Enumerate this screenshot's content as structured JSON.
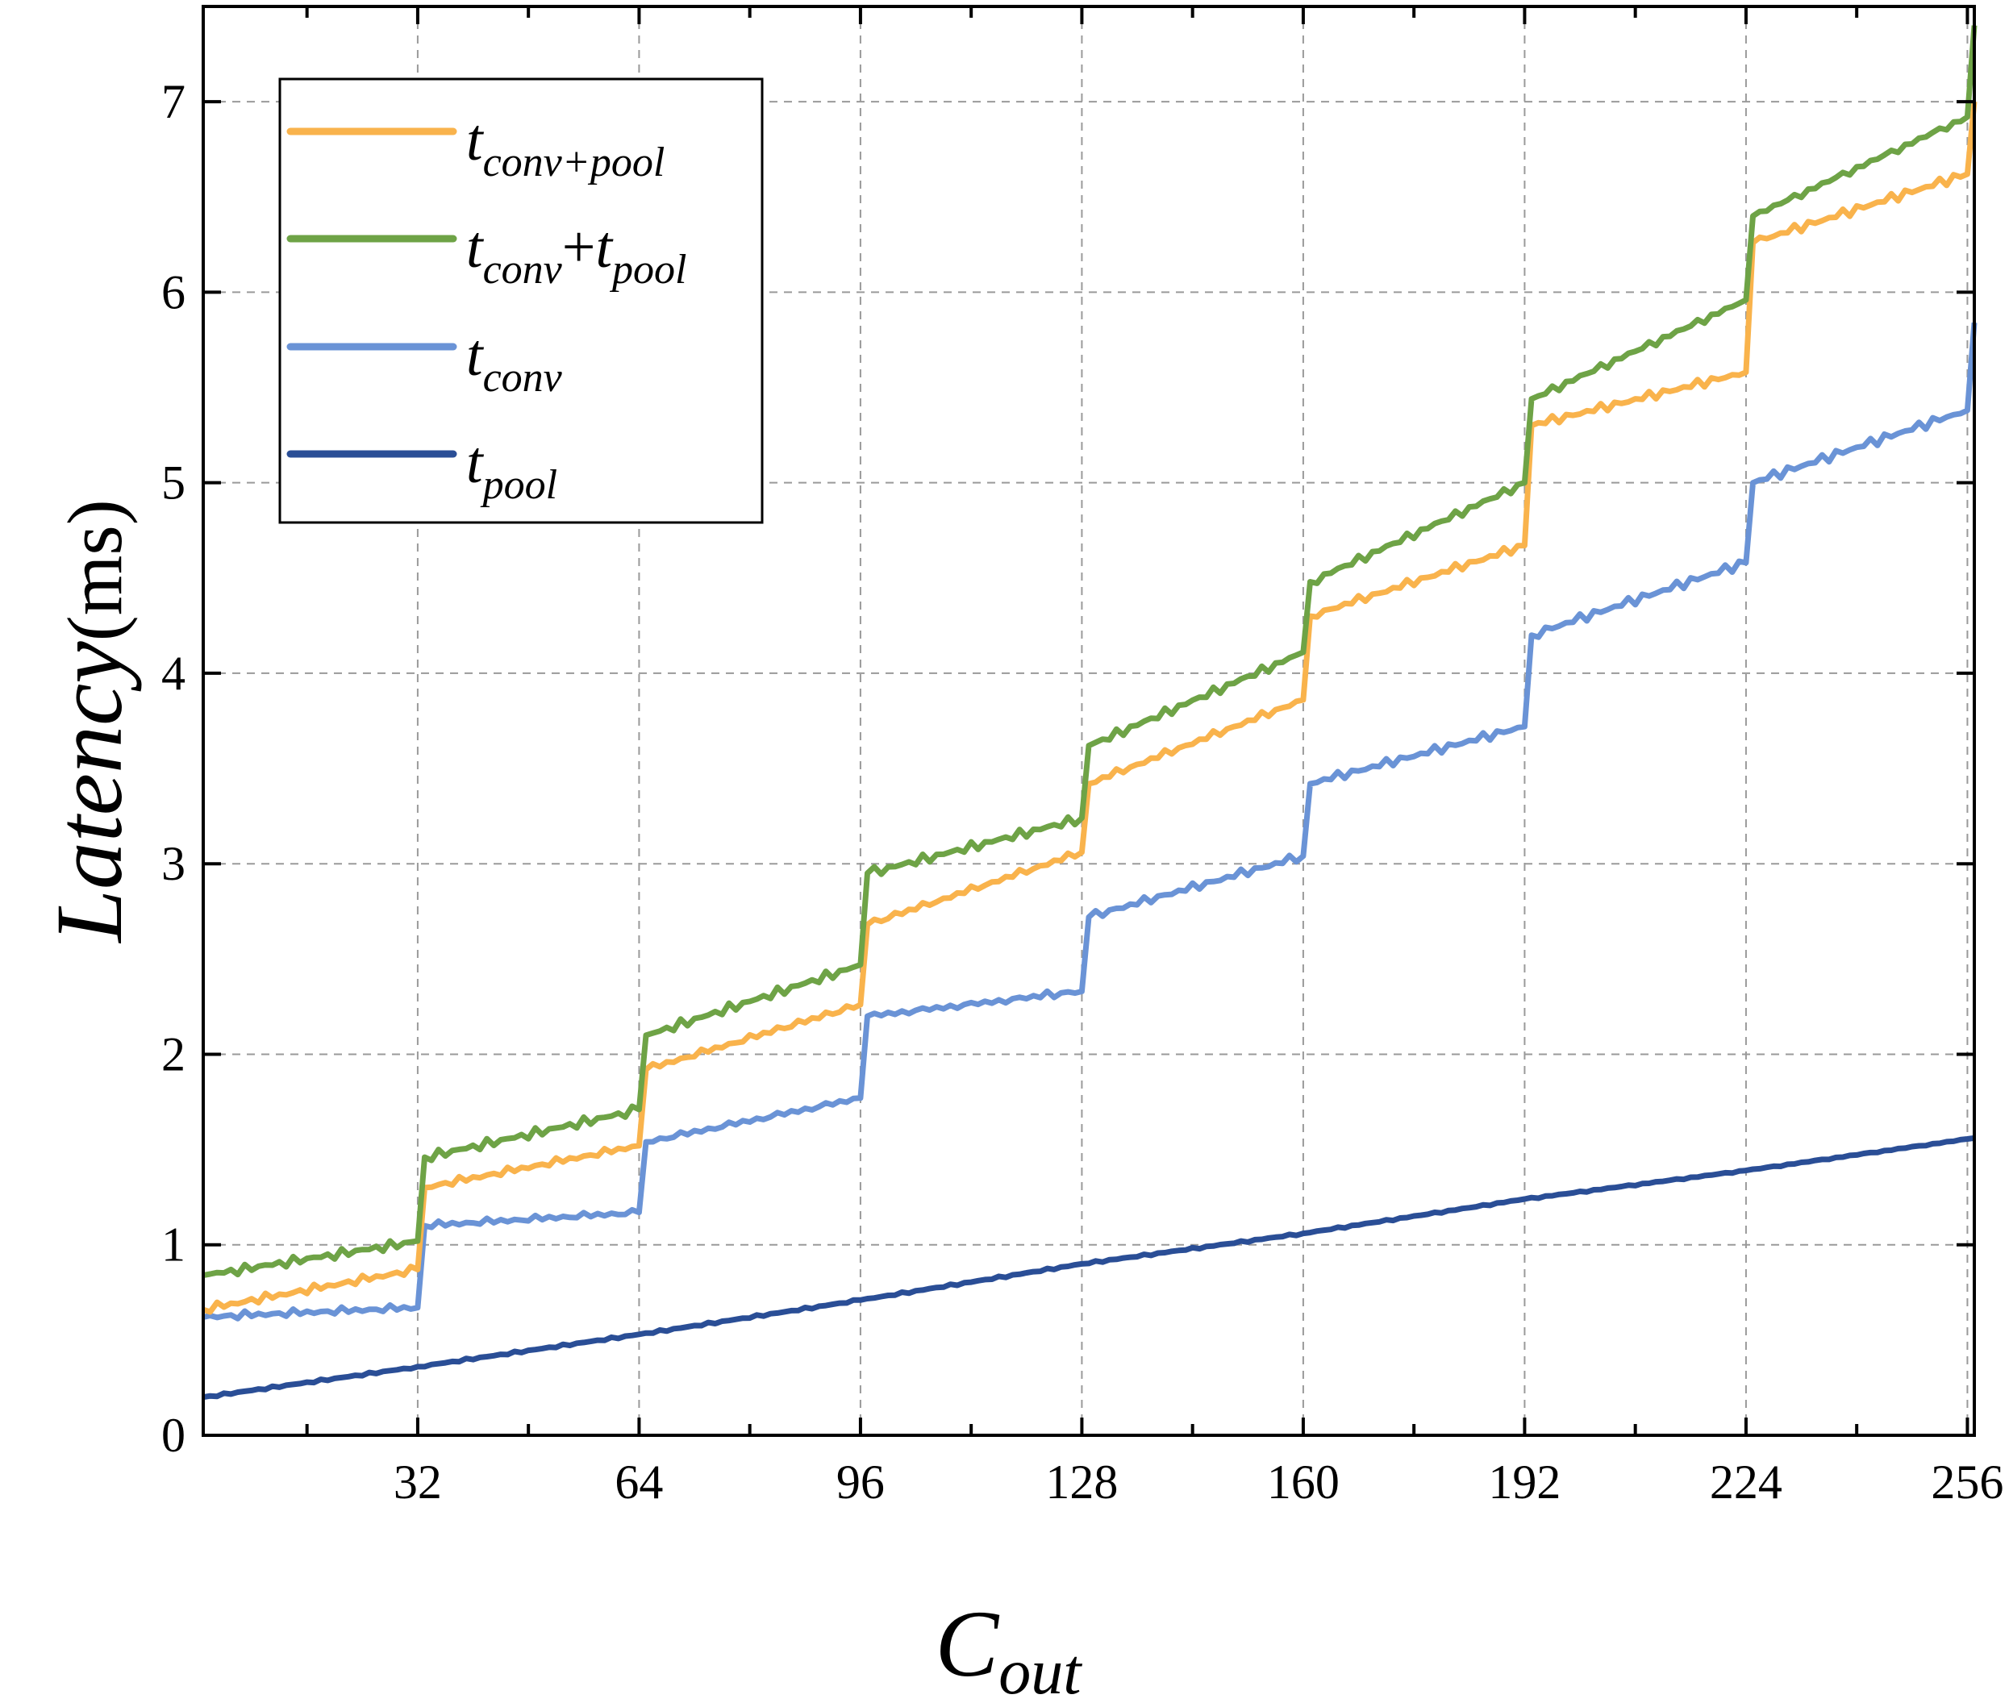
{
  "chart_data": {
    "type": "line",
    "xlabel": {
      "main": "C",
      "sub": "out"
    },
    "ylabel": {
      "italic": "Latency",
      "unit": "(ms)"
    },
    "xlim": [
      1,
      257
    ],
    "ylim": [
      0,
      7.5
    ],
    "x_ticks": [
      32,
      64,
      96,
      128,
      160,
      192,
      224,
      256
    ],
    "x_minor_ticks": [
      16,
      48,
      80,
      112,
      144,
      176,
      208,
      240
    ],
    "y_ticks": [
      0,
      1,
      2,
      3,
      4,
      5,
      6,
      7
    ],
    "grid": true,
    "legend_position": "top-left",
    "series": [
      {
        "name": "t_conv+pool",
        "legend": {
          "base": "t",
          "sub": "conv+pool"
        },
        "color": "#F9B34C",
        "x": [
          1,
          32,
          33,
          64,
          65,
          96,
          97,
          128,
          129,
          160,
          161,
          192,
          193,
          224,
          225,
          256,
          257
        ],
        "values": [
          0.66,
          0.87,
          1.3,
          1.52,
          1.92,
          2.26,
          2.68,
          3.06,
          3.42,
          3.86,
          4.3,
          4.67,
          5.3,
          5.58,
          6.26,
          6.62,
          7.0
        ]
      },
      {
        "name": "t_conv+t_pool",
        "legend": {
          "base1": "t",
          "sub1": "conv",
          "plus": "+",
          "base2": "t",
          "sub2": "pool"
        },
        "color": "#6EA346",
        "x": [
          1,
          32,
          33,
          64,
          65,
          96,
          97,
          128,
          129,
          160,
          161,
          192,
          193,
          224,
          225,
          256,
          257
        ],
        "values": [
          0.84,
          1.02,
          1.46,
          1.71,
          2.1,
          2.47,
          2.95,
          3.24,
          3.62,
          4.11,
          4.48,
          5.0,
          5.44,
          5.96,
          6.4,
          6.92,
          7.4
        ]
      },
      {
        "name": "t_conv",
        "legend": {
          "base": "t",
          "sub": "conv"
        },
        "color": "#6A93D6",
        "x": [
          1,
          32,
          33,
          64,
          65,
          96,
          97,
          128,
          129,
          160,
          161,
          192,
          193,
          224,
          225,
          256,
          257
        ],
        "values": [
          0.62,
          0.67,
          1.1,
          1.17,
          1.54,
          1.77,
          2.2,
          2.33,
          2.72,
          3.04,
          3.42,
          3.72,
          4.2,
          4.58,
          5.0,
          5.38,
          5.84
        ]
      },
      {
        "name": "t_pool",
        "legend": {
          "base": "t",
          "sub": "pool"
        },
        "color": "#2A4E96",
        "x": [
          1,
          32,
          64,
          96,
          128,
          160,
          192,
          224,
          257
        ],
        "values": [
          0.2,
          0.36,
          0.53,
          0.71,
          0.9,
          1.06,
          1.24,
          1.39,
          1.56
        ]
      }
    ]
  }
}
